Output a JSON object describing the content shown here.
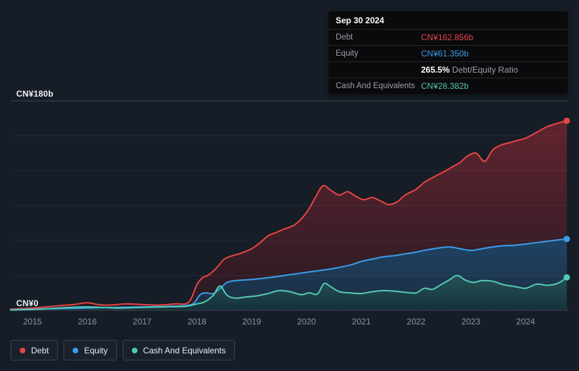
{
  "colors": {
    "debt": "#e64545",
    "equity": "#3b9eea",
    "cash": "#53c9b5",
    "background": "#161d26"
  },
  "axis": {
    "y_max_label": "CN¥180b",
    "y_zero_label": "CN¥0"
  },
  "tooltip": {
    "date": "Sep 30 2024",
    "debt_label": "Debt",
    "debt_value": "CN¥162.856b",
    "equity_label": "Equity",
    "equity_value": "CN¥61.350b",
    "ratio_value": "265.5%",
    "ratio_label": "Debt/Equity Ratio",
    "cash_label": "Cash And Equivalents",
    "cash_value": "CN¥28.382b"
  },
  "legend": {
    "debt": "Debt",
    "equity": "Equity",
    "cash": "Cash And Equivalents"
  },
  "chart_data": {
    "type": "area",
    "x_range": [
      2014.6,
      2024.78
    ],
    "ylim": [
      0,
      180
    ],
    "y_gridline_step": 30,
    "x_ticks": [
      2015,
      2016,
      2017,
      2018,
      2019,
      2020,
      2021,
      2022,
      2023,
      2024
    ],
    "legend_position": "bottom-left",
    "grid": true,
    "series": [
      {
        "name": "Debt",
        "color": "#e64545",
        "fill_top": "#61242f",
        "fill_bottom": "#271a23",
        "last_value": 162.856,
        "x": [
          2014.6,
          2014.8,
          2015,
          2015.25,
          2015.5,
          2015.75,
          2016,
          2016.2,
          2016.4,
          2016.7,
          2017,
          2017.3,
          2017.6,
          2017.85,
          2018,
          2018.1,
          2018.2,
          2018.35,
          2018.5,
          2018.65,
          2018.8,
          2019,
          2019.15,
          2019.3,
          2019.45,
          2019.6,
          2019.8,
          2020,
          2020.15,
          2020.3,
          2020.45,
          2020.6,
          2020.75,
          2020.9,
          2021.05,
          2021.2,
          2021.35,
          2021.5,
          2021.65,
          2021.8,
          2022,
          2022.15,
          2022.3,
          2022.5,
          2022.65,
          2022.8,
          2022.95,
          2023.1,
          2023.25,
          2023.4,
          2023.55,
          2023.7,
          2023.85,
          2024,
          2024.2,
          2024.4,
          2024.6,
          2024.75
        ],
        "values": [
          1,
          1.5,
          2,
          3,
          4,
          5,
          6.5,
          5,
          4.5,
          5.5,
          5,
          4.5,
          5.5,
          7,
          22,
          28,
          30,
          36,
          44,
          47,
          49,
          53,
          58,
          64,
          67,
          70,
          74,
          84,
          96,
          107,
          103,
          99,
          102,
          98,
          95,
          97,
          94,
          91,
          93,
          99,
          104,
          110,
          114,
          119,
          123,
          127,
          133,
          135,
          128,
          138,
          142,
          144,
          146,
          148,
          153,
          158,
          161,
          162.856
        ]
      },
      {
        "name": "Equity",
        "color": "#3b9eea",
        "fill_top": "#1f4466",
        "fill_bottom": "#1b2c3f",
        "last_value": 61.35,
        "x": [
          2014.6,
          2015,
          2015.5,
          2016,
          2016.5,
          2017,
          2017.5,
          2017.9,
          2018.05,
          2018.15,
          2018.3,
          2018.45,
          2018.55,
          2018.7,
          2019,
          2019.3,
          2019.6,
          2019.9,
          2020.2,
          2020.5,
          2020.8,
          2021,
          2021.2,
          2021.4,
          2021.6,
          2021.8,
          2022,
          2022.2,
          2022.4,
          2022.6,
          2022.8,
          2023,
          2023.2,
          2023.4,
          2023.6,
          2023.8,
          2024,
          2024.25,
          2024.5,
          2024.75
        ],
        "values": [
          0.5,
          1,
          1.5,
          2,
          2.5,
          3,
          3.5,
          5,
          13,
          15,
          14.5,
          20,
          24,
          25.5,
          26.5,
          28,
          30,
          32,
          34,
          36,
          39,
          42,
          44,
          46,
          47,
          48.5,
          50,
          52,
          53.5,
          54.5,
          53,
          51.5,
          53,
          54.5,
          55.5,
          56,
          57,
          58.5,
          60,
          61.35
        ]
      },
      {
        "name": "Cash And Equivalents",
        "color": "#53c9b5",
        "fill_top": "#265356",
        "fill_bottom": "#153139",
        "last_value": 28.382,
        "x": [
          2014.6,
          2015,
          2015.4,
          2015.8,
          2016,
          2016.3,
          2016.6,
          2017,
          2017.4,
          2017.8,
          2018,
          2018.15,
          2018.3,
          2018.42,
          2018.55,
          2018.7,
          2018.9,
          2019.1,
          2019.3,
          2019.5,
          2019.7,
          2019.9,
          2020.05,
          2020.2,
          2020.32,
          2020.45,
          2020.6,
          2020.8,
          2021,
          2021.2,
          2021.4,
          2021.6,
          2021.8,
          2022,
          2022.15,
          2022.3,
          2022.45,
          2022.6,
          2022.75,
          2022.9,
          2023.05,
          2023.2,
          2023.4,
          2023.6,
          2023.8,
          2024,
          2024.2,
          2024.4,
          2024.6,
          2024.75
        ],
        "values": [
          0.3,
          0.8,
          1.8,
          2.8,
          3,
          2.5,
          2,
          2.5,
          3,
          3.5,
          5.5,
          7.5,
          13,
          21,
          13,
          10.5,
          11.5,
          12.5,
          14.5,
          17,
          16,
          13.5,
          15,
          14,
          23,
          20,
          16,
          15,
          14.5,
          16,
          17,
          16.5,
          15.5,
          15,
          19,
          18,
          22,
          26,
          30,
          26,
          24,
          25.5,
          25,
          22,
          20.5,
          19,
          22.5,
          21.5,
          23.5,
          28.382
        ]
      }
    ]
  }
}
